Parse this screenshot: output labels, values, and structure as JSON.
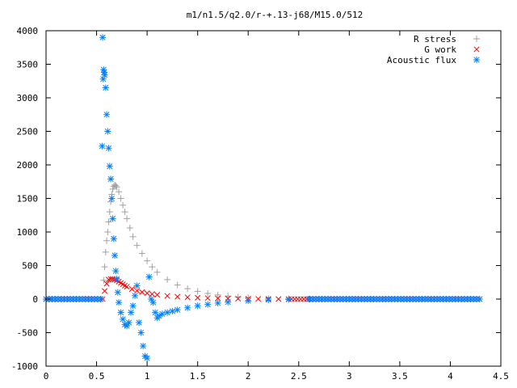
{
  "chart_data": {
    "type": "scatter",
    "title": "m1/n1.5/q2.0/r-+.13-j68/M15.0/512",
    "xlabel": "",
    "ylabel": "",
    "xlim": [
      0,
      4.5
    ],
    "ylim": [
      -1000,
      4000
    ],
    "x_ticks": [
      "0",
      "0.5",
      "1",
      "1.5",
      "2",
      "2.5",
      "3",
      "3.5",
      "4",
      "4.5"
    ],
    "y_ticks": [
      "-1000",
      "-500",
      "0",
      "500",
      "1000",
      "1500",
      "2000",
      "2500",
      "3000",
      "3500",
      "4000"
    ],
    "grid": false,
    "legend_position": "top-right",
    "series": [
      {
        "name": "R stress",
        "marker": "plus",
        "color": "#a0a0a0",
        "x": [
          0.55,
          0.57,
          0.58,
          0.59,
          0.6,
          0.61,
          0.62,
          0.63,
          0.64,
          0.65,
          0.66,
          0.67,
          0.68,
          0.69,
          0.7,
          0.72,
          0.74,
          0.76,
          0.78,
          0.8,
          0.83,
          0.86,
          0.9,
          0.95,
          1.0,
          1.05,
          1.1,
          1.2,
          1.3,
          1.4,
          1.5,
          1.6,
          1.7,
          1.8,
          1.9,
          2.0,
          2.2,
          2.4,
          2.6
        ],
        "y": [
          0,
          280,
          480,
          700,
          870,
          1000,
          1150,
          1300,
          1450,
          1560,
          1640,
          1680,
          1700,
          1690,
          1670,
          1600,
          1500,
          1400,
          1300,
          1200,
          1060,
          930,
          800,
          680,
          570,
          480,
          400,
          290,
          210,
          155,
          115,
          85,
          62,
          45,
          32,
          22,
          10,
          4,
          0
        ]
      },
      {
        "name": "G work",
        "marker": "cross",
        "color": "#ff0000",
        "x": [
          0.56,
          0.58,
          0.6,
          0.62,
          0.64,
          0.66,
          0.68,
          0.7,
          0.72,
          0.74,
          0.76,
          0.78,
          0.8,
          0.85,
          0.9,
          0.95,
          1.0,
          1.05,
          1.1,
          1.2,
          1.3,
          1.4,
          1.5,
          1.6,
          1.7,
          1.8,
          1.9,
          2.0,
          2.1,
          2.2,
          2.3,
          2.4
        ],
        "y": [
          0,
          120,
          230,
          290,
          300,
          300,
          290,
          280,
          260,
          240,
          220,
          200,
          185,
          150,
          125,
          105,
          88,
          75,
          64,
          48,
          36,
          27,
          20,
          15,
          11,
          8,
          6,
          4,
          3,
          2,
          1,
          0
        ]
      },
      {
        "name": "Acoustic flux",
        "marker": "star",
        "color": "#0080ff",
        "x": [
          0.56,
          0.555,
          0.565,
          0.57,
          0.575,
          0.58,
          0.59,
          0.6,
          0.61,
          0.62,
          0.63,
          0.64,
          0.65,
          0.66,
          0.67,
          0.68,
          0.69,
          0.7,
          0.71,
          0.72,
          0.74,
          0.76,
          0.78,
          0.8,
          0.82,
          0.84,
          0.86,
          0.88,
          0.9,
          0.92,
          0.94,
          0.96,
          0.98,
          1.0,
          1.02,
          1.04,
          1.06,
          1.08,
          1.1,
          1.12,
          1.15,
          1.2,
          1.25,
          1.3,
          1.4,
          1.5,
          1.6,
          1.7,
          1.8,
          2.0,
          2.2,
          2.4,
          2.6
        ],
        "y": [
          3900,
          2280,
          3280,
          3420,
          3380,
          3340,
          3150,
          2750,
          2500,
          2250,
          1980,
          1790,
          1500,
          1200,
          900,
          650,
          420,
          300,
          100,
          -50,
          -200,
          -300,
          -380,
          -400,
          -350,
          -200,
          -100,
          50,
          200,
          -350,
          -500,
          -700,
          -850,
          -880,
          330,
          0,
          -50,
          -200,
          -280,
          -250,
          -220,
          -200,
          -180,
          -160,
          -130,
          -100,
          -80,
          -60,
          -45,
          -25,
          -12,
          -5,
          0
        ]
      }
    ]
  }
}
